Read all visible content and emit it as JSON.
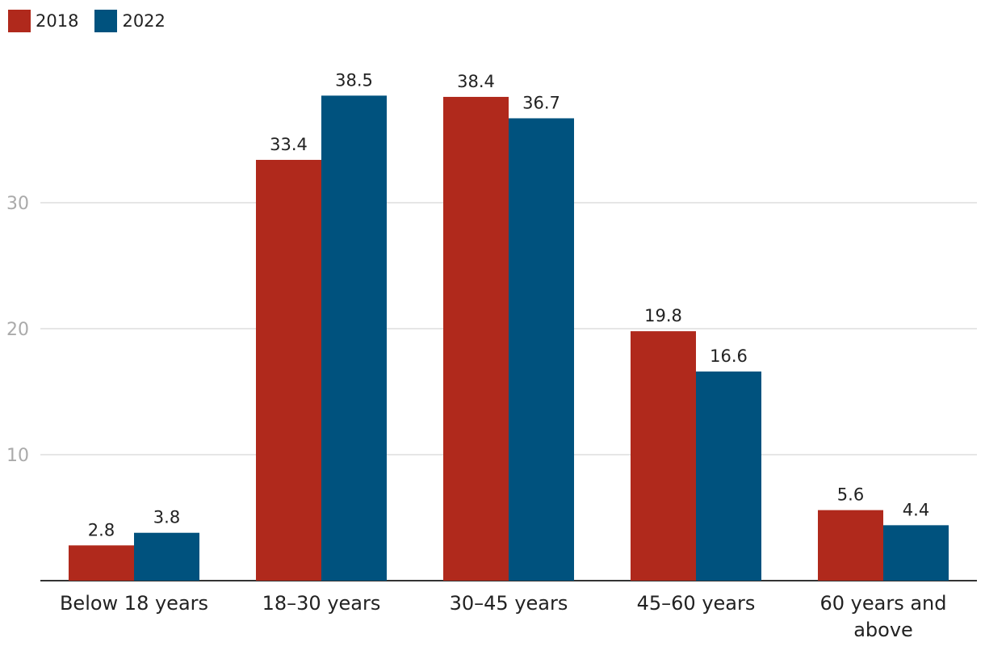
{
  "chart_data": {
    "type": "bar",
    "categories": [
      "Below 18 years",
      "18–30 years",
      "30–45 years",
      "45–60 years",
      "60 years and above"
    ],
    "series": [
      {
        "name": "2018",
        "color": "#b0291c",
        "values": [
          2.8,
          33.4,
          38.4,
          19.8,
          5.6
        ]
      },
      {
        "name": "2022",
        "color": "#00527e",
        "values": [
          3.8,
          38.5,
          36.7,
          16.6,
          4.4
        ]
      }
    ],
    "yticks": [
      10,
      20,
      30
    ],
    "ylim": [
      0,
      40
    ],
    "grid": true,
    "legend_position": "top-left"
  }
}
